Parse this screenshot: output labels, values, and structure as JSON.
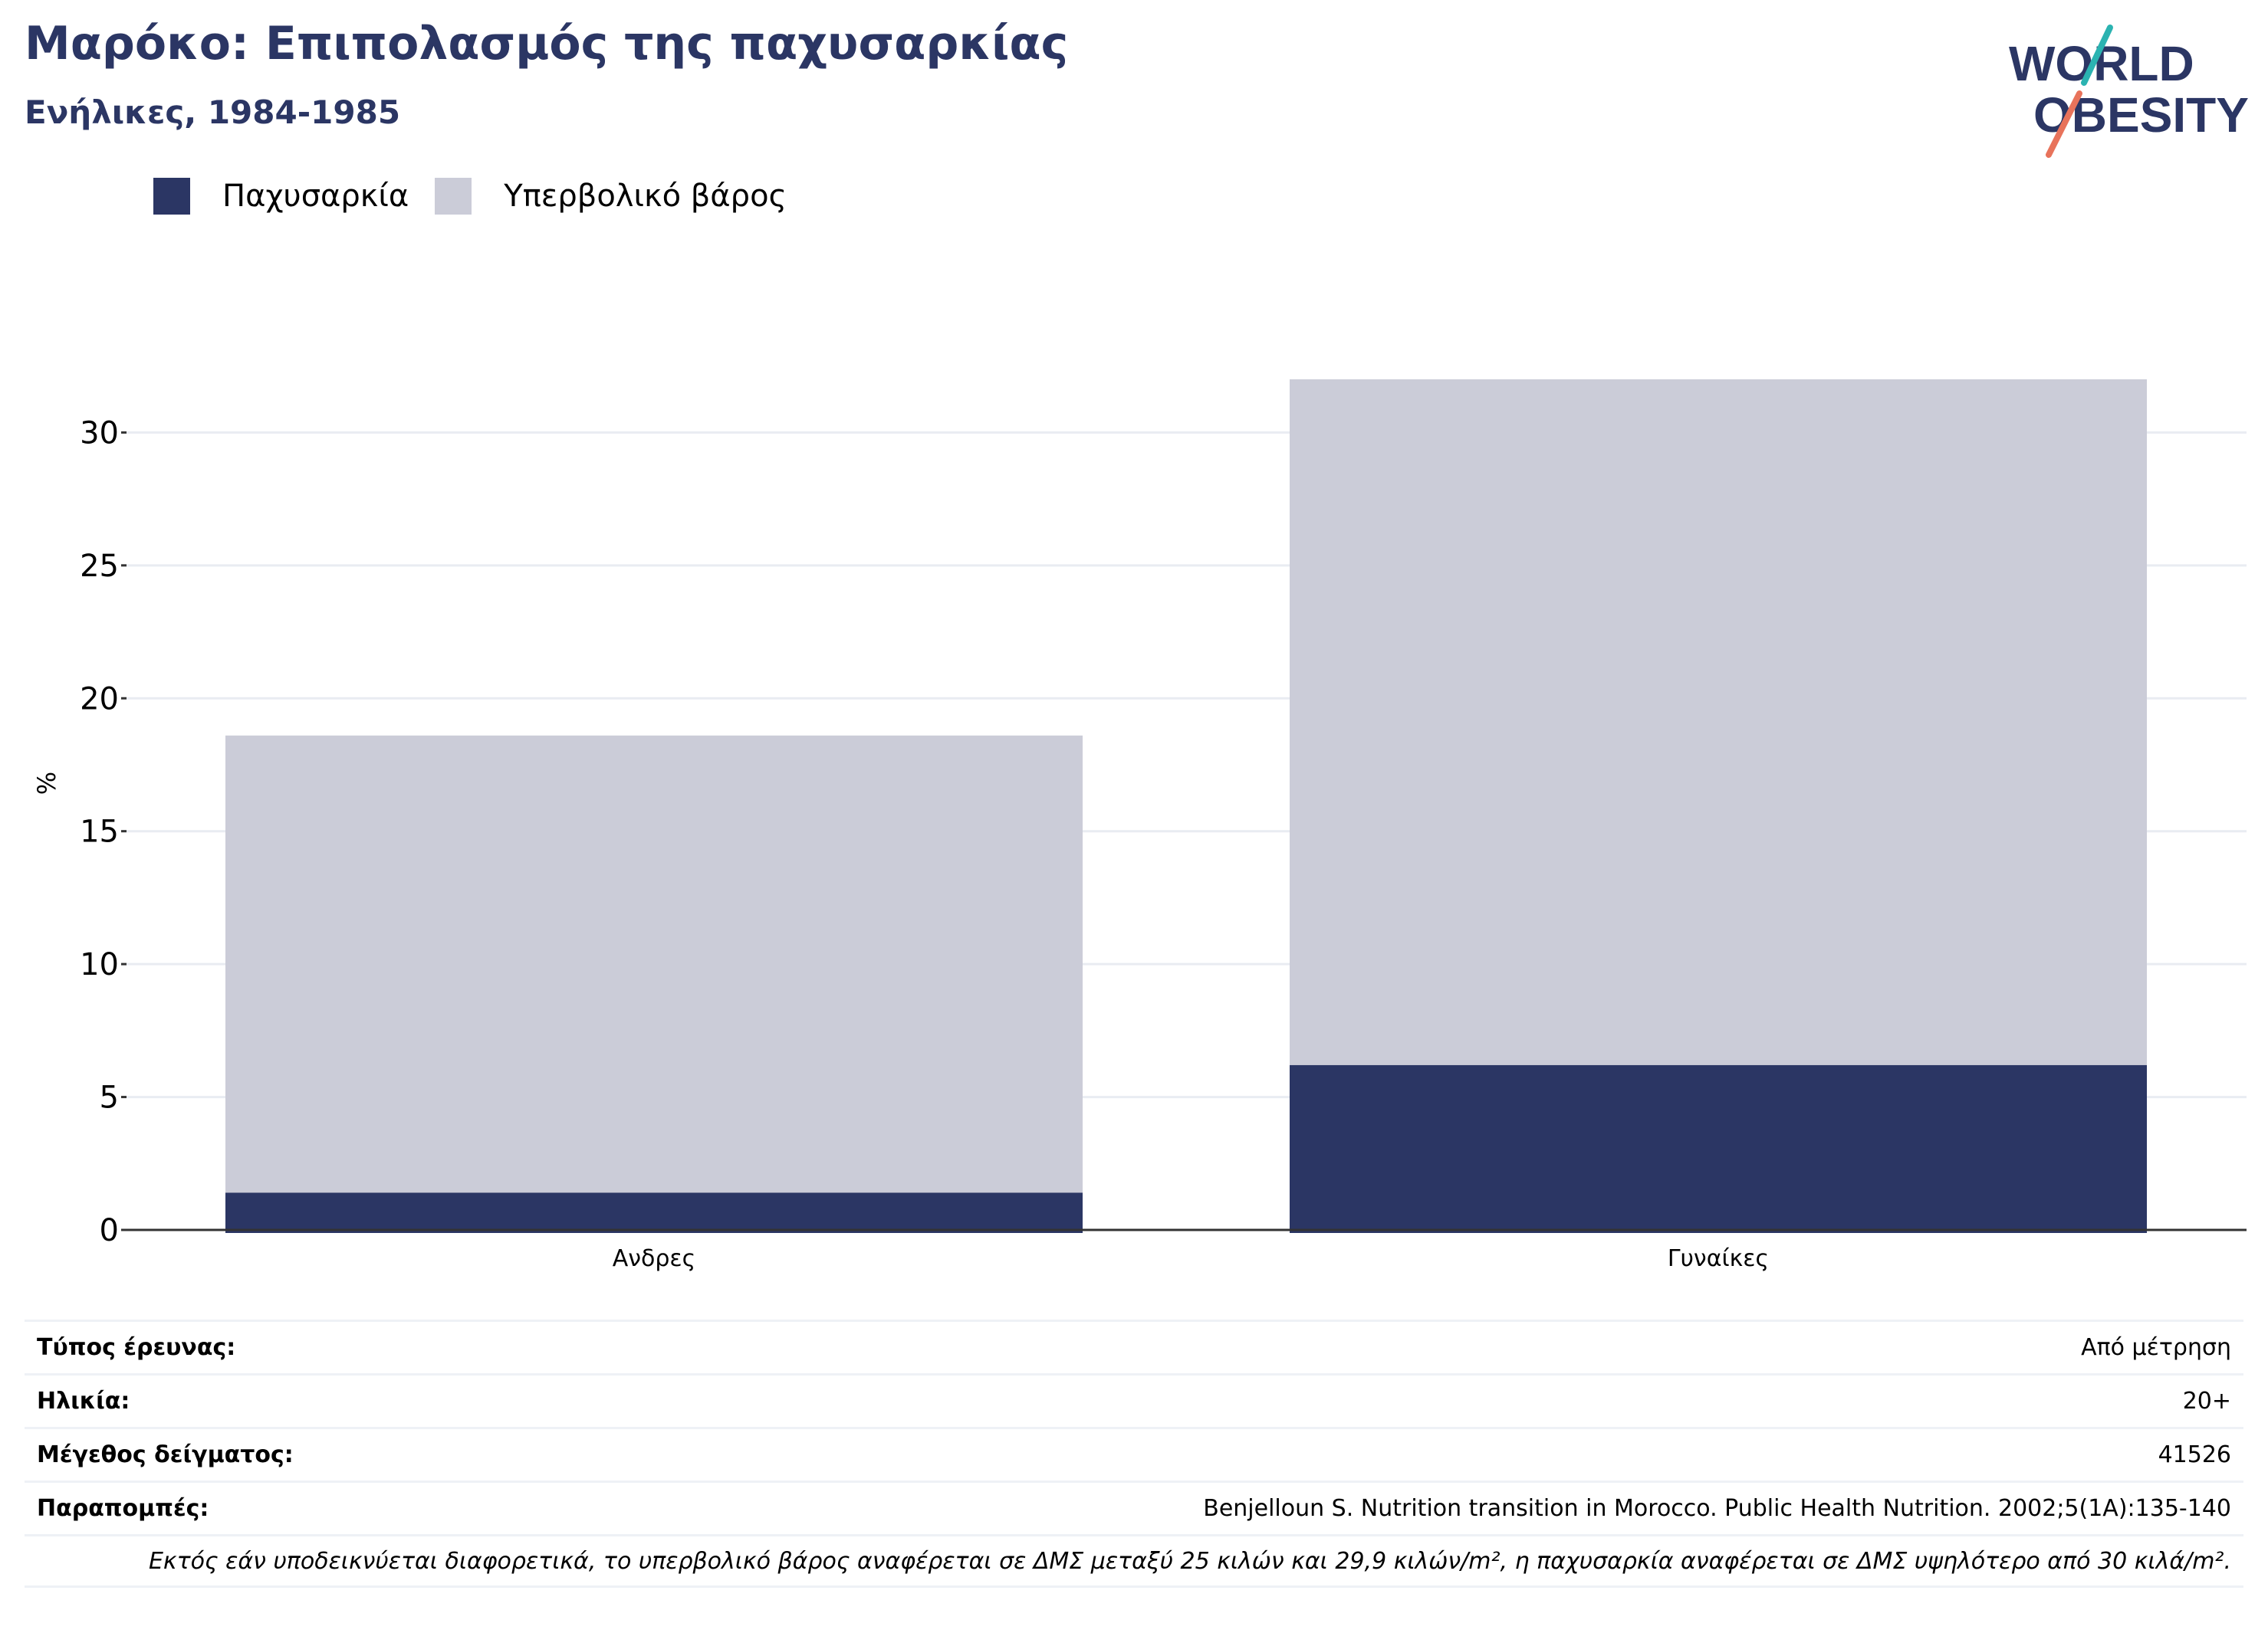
{
  "header": {
    "title": "Μαρόκο: Επιπολασμός της παχυσαρκίας",
    "subtitle": "Ενήλικες, 1984-1985"
  },
  "logo": {
    "line1": "WORLD",
    "line2": "OBESITY"
  },
  "colors": {
    "obesity": "#2b3664",
    "overweight": "#cbccd8",
    "title": "#2b3664",
    "logo_teal": "#2bb3b1",
    "logo_red": "#e8735b",
    "gridline": "#e9ecf2",
    "axis": "#333333"
  },
  "legend": [
    {
      "label": "Παχυσαρκία",
      "color": "#2b3664"
    },
    {
      "label": "Υπερβολικό βάρος",
      "color": "#cbccd8"
    }
  ],
  "chart_data": {
    "type": "bar",
    "stacked": true,
    "categories": [
      "Ανδρες",
      "Γυναίκες"
    ],
    "series": [
      {
        "name": "Παχυσαρκία",
        "values": [
          1.4,
          6.2
        ]
      },
      {
        "name": "Υπερβολικό βάρος",
        "values": [
          17.2,
          25.8
        ]
      }
    ],
    "ylabel": "%",
    "ylim": [
      0,
      32
    ],
    "yticks": [
      0,
      5,
      10,
      15,
      20,
      25,
      30
    ],
    "grid": true
  },
  "metadata": {
    "rows": [
      {
        "key": "Τύπος έρευνας:",
        "value": "Από μέτρηση"
      },
      {
        "key": "Ηλικία:",
        "value": "20+"
      },
      {
        "key": "Μέγεθος δείγματος:",
        "value": "41526"
      },
      {
        "key": "Παραπομπές:",
        "value": "Benjelloun S. Nutrition transition in Morocco. Public Health Nutrition. 2002;5(1A):135-140"
      }
    ],
    "note": "Εκτός εάν υποδεικνύεται διαφορετικά, το υπερβολικό βάρος αναφέρεται σε ΔΜΣ μεταξύ 25 κιλών και 29,9 κιλών/m², η παχυσαρκία αναφέρεται σε ΔΜΣ υψηλότερο από 30 κιλά/m²."
  }
}
